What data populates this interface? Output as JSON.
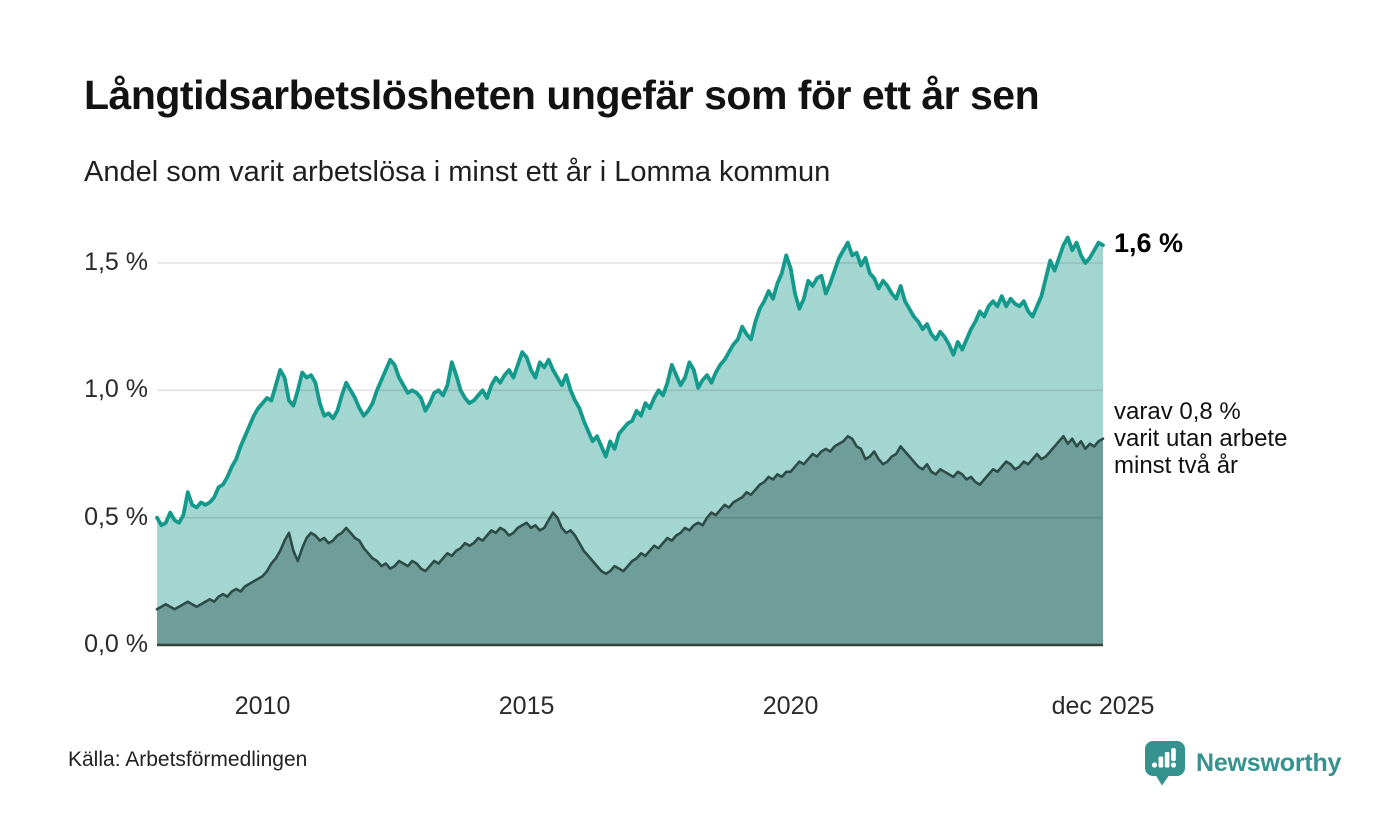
{
  "header": {
    "title": "Långtidsarbetslösheten ungefär som för ett år sen",
    "subtitle": "Andel som varit arbetslösa i minst ett år i Lomma kommun"
  },
  "annotations": {
    "primary": "1,6 %",
    "secondary": "varav 0,8 %\nvarit utan arbete\nminst två år"
  },
  "footer": {
    "source": "Källa: Arbetsförmedlingen",
    "brand_name": "Newsworthy"
  },
  "colors": {
    "grid": "rgba(0,0,0,0.11)",
    "zero_axis": "#37413f",
    "brand": "#35928e",
    "text": "#111111"
  },
  "chart_data": {
    "type": "area",
    "title": "Långtidsarbetslösheten ungefär som för ett år sen",
    "subtitle": "Andel som varit arbetslösa i minst ett år i Lomma kommun",
    "unit": "%",
    "frequency": "monthly",
    "x_start": "jan 2008",
    "x_end": "dec 2025",
    "ylim": [
      0,
      1.65
    ],
    "grid": "horizontal",
    "legend_position": "inline-right-annotations",
    "x_ticks": [
      {
        "label": "2010",
        "month_index": 24
      },
      {
        "label": "2015",
        "month_index": 84
      },
      {
        "label": "2020",
        "month_index": 144
      },
      {
        "label": "dec 2025",
        "month_index": 215
      }
    ],
    "y_ticks": [
      {
        "label": "0,0 %",
        "value": 0
      },
      {
        "label": "0,5 %",
        "value": 0.5
      },
      {
        "label": "1,0 %",
        "value": 1.0
      },
      {
        "label": "1,5 %",
        "value": 1.5
      }
    ],
    "series": [
      {
        "name": "Andel arbetslösa minst ett år",
        "latest_value": 1.6,
        "latest_label": "1,6 %",
        "line_color": "#149a8c",
        "fill_color": "#a3d6d0",
        "values": [
          0.5,
          0.47,
          0.48,
          0.52,
          0.49,
          0.48,
          0.51,
          0.6,
          0.55,
          0.54,
          0.56,
          0.55,
          0.56,
          0.58,
          0.62,
          0.63,
          0.66,
          0.7,
          0.73,
          0.78,
          0.82,
          0.86,
          0.9,
          0.93,
          0.95,
          0.97,
          0.96,
          1.02,
          1.08,
          1.05,
          0.96,
          0.94,
          1.0,
          1.07,
          1.05,
          1.06,
          1.03,
          0.95,
          0.9,
          0.91,
          0.89,
          0.92,
          0.98,
          1.03,
          1.0,
          0.97,
          0.93,
          0.9,
          0.92,
          0.95,
          1.0,
          1.04,
          1.08,
          1.12,
          1.1,
          1.05,
          1.02,
          0.99,
          1.0,
          0.99,
          0.97,
          0.92,
          0.95,
          0.99,
          1.0,
          0.98,
          1.02,
          1.11,
          1.06,
          1.0,
          0.97,
          0.95,
          0.96,
          0.98,
          1.0,
          0.97,
          1.02,
          1.05,
          1.03,
          1.06,
          1.08,
          1.05,
          1.1,
          1.15,
          1.13,
          1.08,
          1.05,
          1.11,
          1.09,
          1.12,
          1.08,
          1.05,
          1.02,
          1.06,
          1.0,
          0.96,
          0.93,
          0.88,
          0.84,
          0.8,
          0.82,
          0.78,
          0.74,
          0.8,
          0.77,
          0.83,
          0.85,
          0.87,
          0.88,
          0.92,
          0.9,
          0.95,
          0.93,
          0.97,
          1.0,
          0.98,
          1.03,
          1.1,
          1.06,
          1.02,
          1.05,
          1.11,
          1.08,
          1.01,
          1.04,
          1.06,
          1.03,
          1.07,
          1.1,
          1.12,
          1.15,
          1.18,
          1.2,
          1.25,
          1.22,
          1.2,
          1.27,
          1.32,
          1.35,
          1.39,
          1.36,
          1.42,
          1.46,
          1.53,
          1.48,
          1.38,
          1.32,
          1.36,
          1.43,
          1.41,
          1.44,
          1.45,
          1.38,
          1.42,
          1.47,
          1.52,
          1.55,
          1.58,
          1.53,
          1.54,
          1.49,
          1.52,
          1.46,
          1.44,
          1.4,
          1.43,
          1.41,
          1.38,
          1.36,
          1.41,
          1.35,
          1.32,
          1.29,
          1.27,
          1.24,
          1.26,
          1.22,
          1.2,
          1.23,
          1.21,
          1.18,
          1.14,
          1.19,
          1.16,
          1.2,
          1.24,
          1.27,
          1.31,
          1.29,
          1.33,
          1.35,
          1.33,
          1.37,
          1.33,
          1.36,
          1.34,
          1.33,
          1.35,
          1.31,
          1.29,
          1.33,
          1.37,
          1.44,
          1.51,
          1.47,
          1.52,
          1.57,
          1.6,
          1.55,
          1.58,
          1.53,
          1.5,
          1.52,
          1.55,
          1.58,
          1.57
        ]
      },
      {
        "name": "varav utan arbete minst två år",
        "latest_value": 0.8,
        "latest_label": "varav 0,8 % varit utan arbete minst två år",
        "line_color": "#2d4b47",
        "fill_color": "#6f9d99",
        "values": [
          0.14,
          0.15,
          0.16,
          0.15,
          0.14,
          0.15,
          0.16,
          0.17,
          0.16,
          0.15,
          0.16,
          0.17,
          0.18,
          0.17,
          0.19,
          0.2,
          0.19,
          0.21,
          0.22,
          0.21,
          0.23,
          0.24,
          0.25,
          0.26,
          0.27,
          0.29,
          0.32,
          0.34,
          0.37,
          0.41,
          0.44,
          0.37,
          0.33,
          0.38,
          0.42,
          0.44,
          0.43,
          0.41,
          0.42,
          0.4,
          0.41,
          0.43,
          0.44,
          0.46,
          0.44,
          0.42,
          0.41,
          0.38,
          0.36,
          0.34,
          0.33,
          0.31,
          0.32,
          0.3,
          0.31,
          0.33,
          0.32,
          0.31,
          0.33,
          0.32,
          0.3,
          0.29,
          0.31,
          0.33,
          0.32,
          0.34,
          0.36,
          0.35,
          0.37,
          0.38,
          0.4,
          0.39,
          0.4,
          0.42,
          0.41,
          0.43,
          0.45,
          0.44,
          0.46,
          0.45,
          0.43,
          0.44,
          0.46,
          0.47,
          0.48,
          0.46,
          0.47,
          0.45,
          0.46,
          0.49,
          0.52,
          0.5,
          0.46,
          0.44,
          0.45,
          0.43,
          0.4,
          0.37,
          0.35,
          0.33,
          0.31,
          0.29,
          0.28,
          0.29,
          0.31,
          0.3,
          0.29,
          0.31,
          0.33,
          0.34,
          0.36,
          0.35,
          0.37,
          0.39,
          0.38,
          0.4,
          0.42,
          0.41,
          0.43,
          0.44,
          0.46,
          0.45,
          0.47,
          0.48,
          0.47,
          0.5,
          0.52,
          0.51,
          0.53,
          0.55,
          0.54,
          0.56,
          0.57,
          0.58,
          0.6,
          0.59,
          0.61,
          0.63,
          0.64,
          0.66,
          0.65,
          0.67,
          0.66,
          0.68,
          0.68,
          0.7,
          0.72,
          0.71,
          0.73,
          0.75,
          0.74,
          0.76,
          0.77,
          0.76,
          0.78,
          0.79,
          0.8,
          0.82,
          0.81,
          0.78,
          0.77,
          0.73,
          0.74,
          0.76,
          0.73,
          0.71,
          0.72,
          0.74,
          0.75,
          0.78,
          0.76,
          0.74,
          0.72,
          0.7,
          0.69,
          0.71,
          0.68,
          0.67,
          0.69,
          0.68,
          0.67,
          0.66,
          0.68,
          0.67,
          0.65,
          0.66,
          0.64,
          0.63,
          0.65,
          0.67,
          0.69,
          0.68,
          0.7,
          0.72,
          0.71,
          0.69,
          0.7,
          0.72,
          0.71,
          0.73,
          0.75,
          0.73,
          0.74,
          0.76,
          0.78,
          0.8,
          0.82,
          0.79,
          0.81,
          0.78,
          0.8,
          0.77,
          0.79,
          0.78,
          0.8,
          0.81
        ]
      }
    ]
  }
}
